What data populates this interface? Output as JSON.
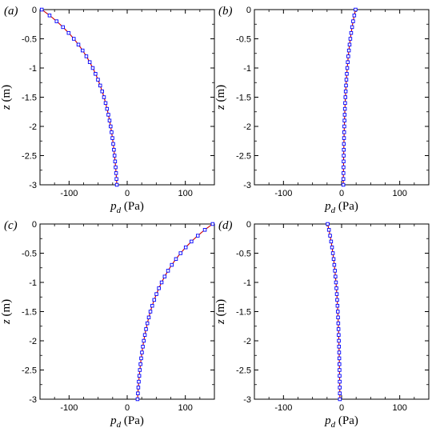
{
  "chart_data": [
    {
      "type": "line",
      "panel_label": "(a)",
      "xlabel": {
        "main": "p",
        "sub": "d",
        "unit": " (Pa)"
      },
      "ylabel": {
        "main": "z",
        "unit": " (m)"
      },
      "xlim": [
        -150,
        150
      ],
      "ylim": [
        -3,
        0
      ],
      "xticks": [
        -100,
        0,
        100
      ],
      "xtick_labels": [
        "-100",
        "0",
        "100"
      ],
      "yticks": [
        0,
        -0.5,
        -1,
        -1.5,
        -2,
        -2.5,
        -3
      ],
      "ytick_labels": [
        "0",
        "-0.5",
        "-1",
        "-1.5",
        "-2",
        "-2.5",
        "-3"
      ],
      "curve": {
        "p0": -147,
        "p_bottom": -12,
        "decay": 1.05
      },
      "series": [
        {
          "style": "line",
          "color": "#cc0000"
        },
        {
          "style": "markers",
          "marker": "square-open",
          "color": "#0000ff"
        }
      ]
    },
    {
      "type": "line",
      "panel_label": "(b)",
      "xlabel": {
        "main": "p",
        "sub": "d",
        "unit": " (Pa)"
      },
      "ylabel": {
        "main": "z",
        "unit": " (m)"
      },
      "xlim": [
        -150,
        150
      ],
      "ylim": [
        -3,
        0
      ],
      "xticks": [
        -100,
        0,
        100
      ],
      "xtick_labels": [
        "-100",
        "0",
        "100"
      ],
      "yticks": [
        0,
        -0.5,
        -1,
        -1.5,
        -2,
        -2.5,
        -3
      ],
      "ytick_labels": [
        "0",
        "-0.5",
        "-1",
        "-1.5",
        "-2",
        "-2.5",
        "-3"
      ],
      "curve": {
        "p0": 24,
        "p_bottom": 2,
        "decay": 1.05
      },
      "series": [
        {
          "style": "line",
          "color": "#cc0000"
        },
        {
          "style": "markers",
          "marker": "square-open",
          "color": "#0000ff"
        }
      ]
    },
    {
      "type": "line",
      "panel_label": "(c)",
      "xlabel": {
        "main": "p",
        "sub": "d",
        "unit": " (Pa)"
      },
      "ylabel": {
        "main": "z",
        "unit": " (m)"
      },
      "xlim": [
        -150,
        150
      ],
      "ylim": [
        -3,
        0
      ],
      "xticks": [
        -100,
        0,
        100
      ],
      "xtick_labels": [
        "-100",
        "0",
        "100"
      ],
      "yticks": [
        0,
        -0.5,
        -1,
        -1.5,
        -2,
        -2.5,
        -3
      ],
      "ytick_labels": [
        "0",
        "-0.5",
        "-1",
        "-1.5",
        "-2",
        "-2.5",
        "-3"
      ],
      "curve": {
        "p0": 147,
        "p_bottom": 12,
        "decay": 1.05
      },
      "series": [
        {
          "style": "line",
          "color": "#cc0000"
        },
        {
          "style": "markers",
          "marker": "square-open",
          "color": "#0000ff"
        }
      ]
    },
    {
      "type": "line",
      "panel_label": "(d)",
      "xlabel": {
        "main": "p",
        "sub": "d",
        "unit": " (Pa)"
      },
      "ylabel": {
        "main": "z",
        "unit": " (m)"
      },
      "xlim": [
        -150,
        150
      ],
      "ylim": [
        -3,
        0
      ],
      "xticks": [
        -100,
        0,
        100
      ],
      "xtick_labels": [
        "-100",
        "0",
        "100"
      ],
      "yticks": [
        0,
        -0.5,
        -1,
        -1.5,
        -2,
        -2.5,
        -3
      ],
      "ytick_labels": [
        "0",
        "-0.5",
        "-1",
        "-1.5",
        "-2",
        "-2.5",
        "-3"
      ],
      "curve": {
        "p0": -24,
        "p_bottom": -2,
        "decay": 1.05
      },
      "series": [
        {
          "style": "line",
          "color": "#cc0000"
        },
        {
          "style": "markers",
          "marker": "square-open",
          "color": "#0000ff"
        }
      ]
    }
  ]
}
